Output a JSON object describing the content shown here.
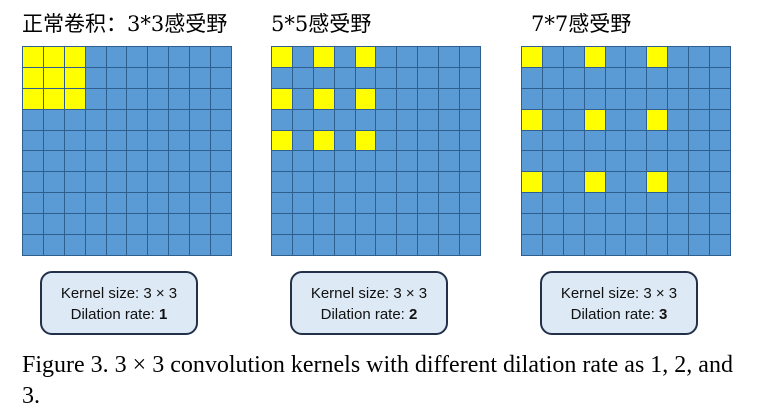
{
  "panels": [
    {
      "title": "正常卷积：3*3感受野",
      "kernel_label": "Kernel size: 3 × 3",
      "dilation_label": "Dilation rate: ",
      "dilation_value": "1",
      "dilation": 1
    },
    {
      "title": "5*5感受野",
      "kernel_label": "Kernel size: 3 × 3",
      "dilation_label": "Dilation rate: ",
      "dilation_value": "2",
      "dilation": 2
    },
    {
      "title": "7*7感受野",
      "kernel_label": "Kernel size: 3 × 3",
      "dilation_label": "Dilation rate: ",
      "dilation_value": "3",
      "dilation": 3
    }
  ],
  "grid_size": 10,
  "colors": {
    "cell": "#5b9bd5",
    "active": "#ffff00",
    "grid_line": "#2f5f8f",
    "box_bg": "#dde9f5",
    "box_border": "#22304a"
  },
  "caption": "Figure 3. 3 × 3 convolution kernels with different dilation rate as 1, 2, and 3."
}
